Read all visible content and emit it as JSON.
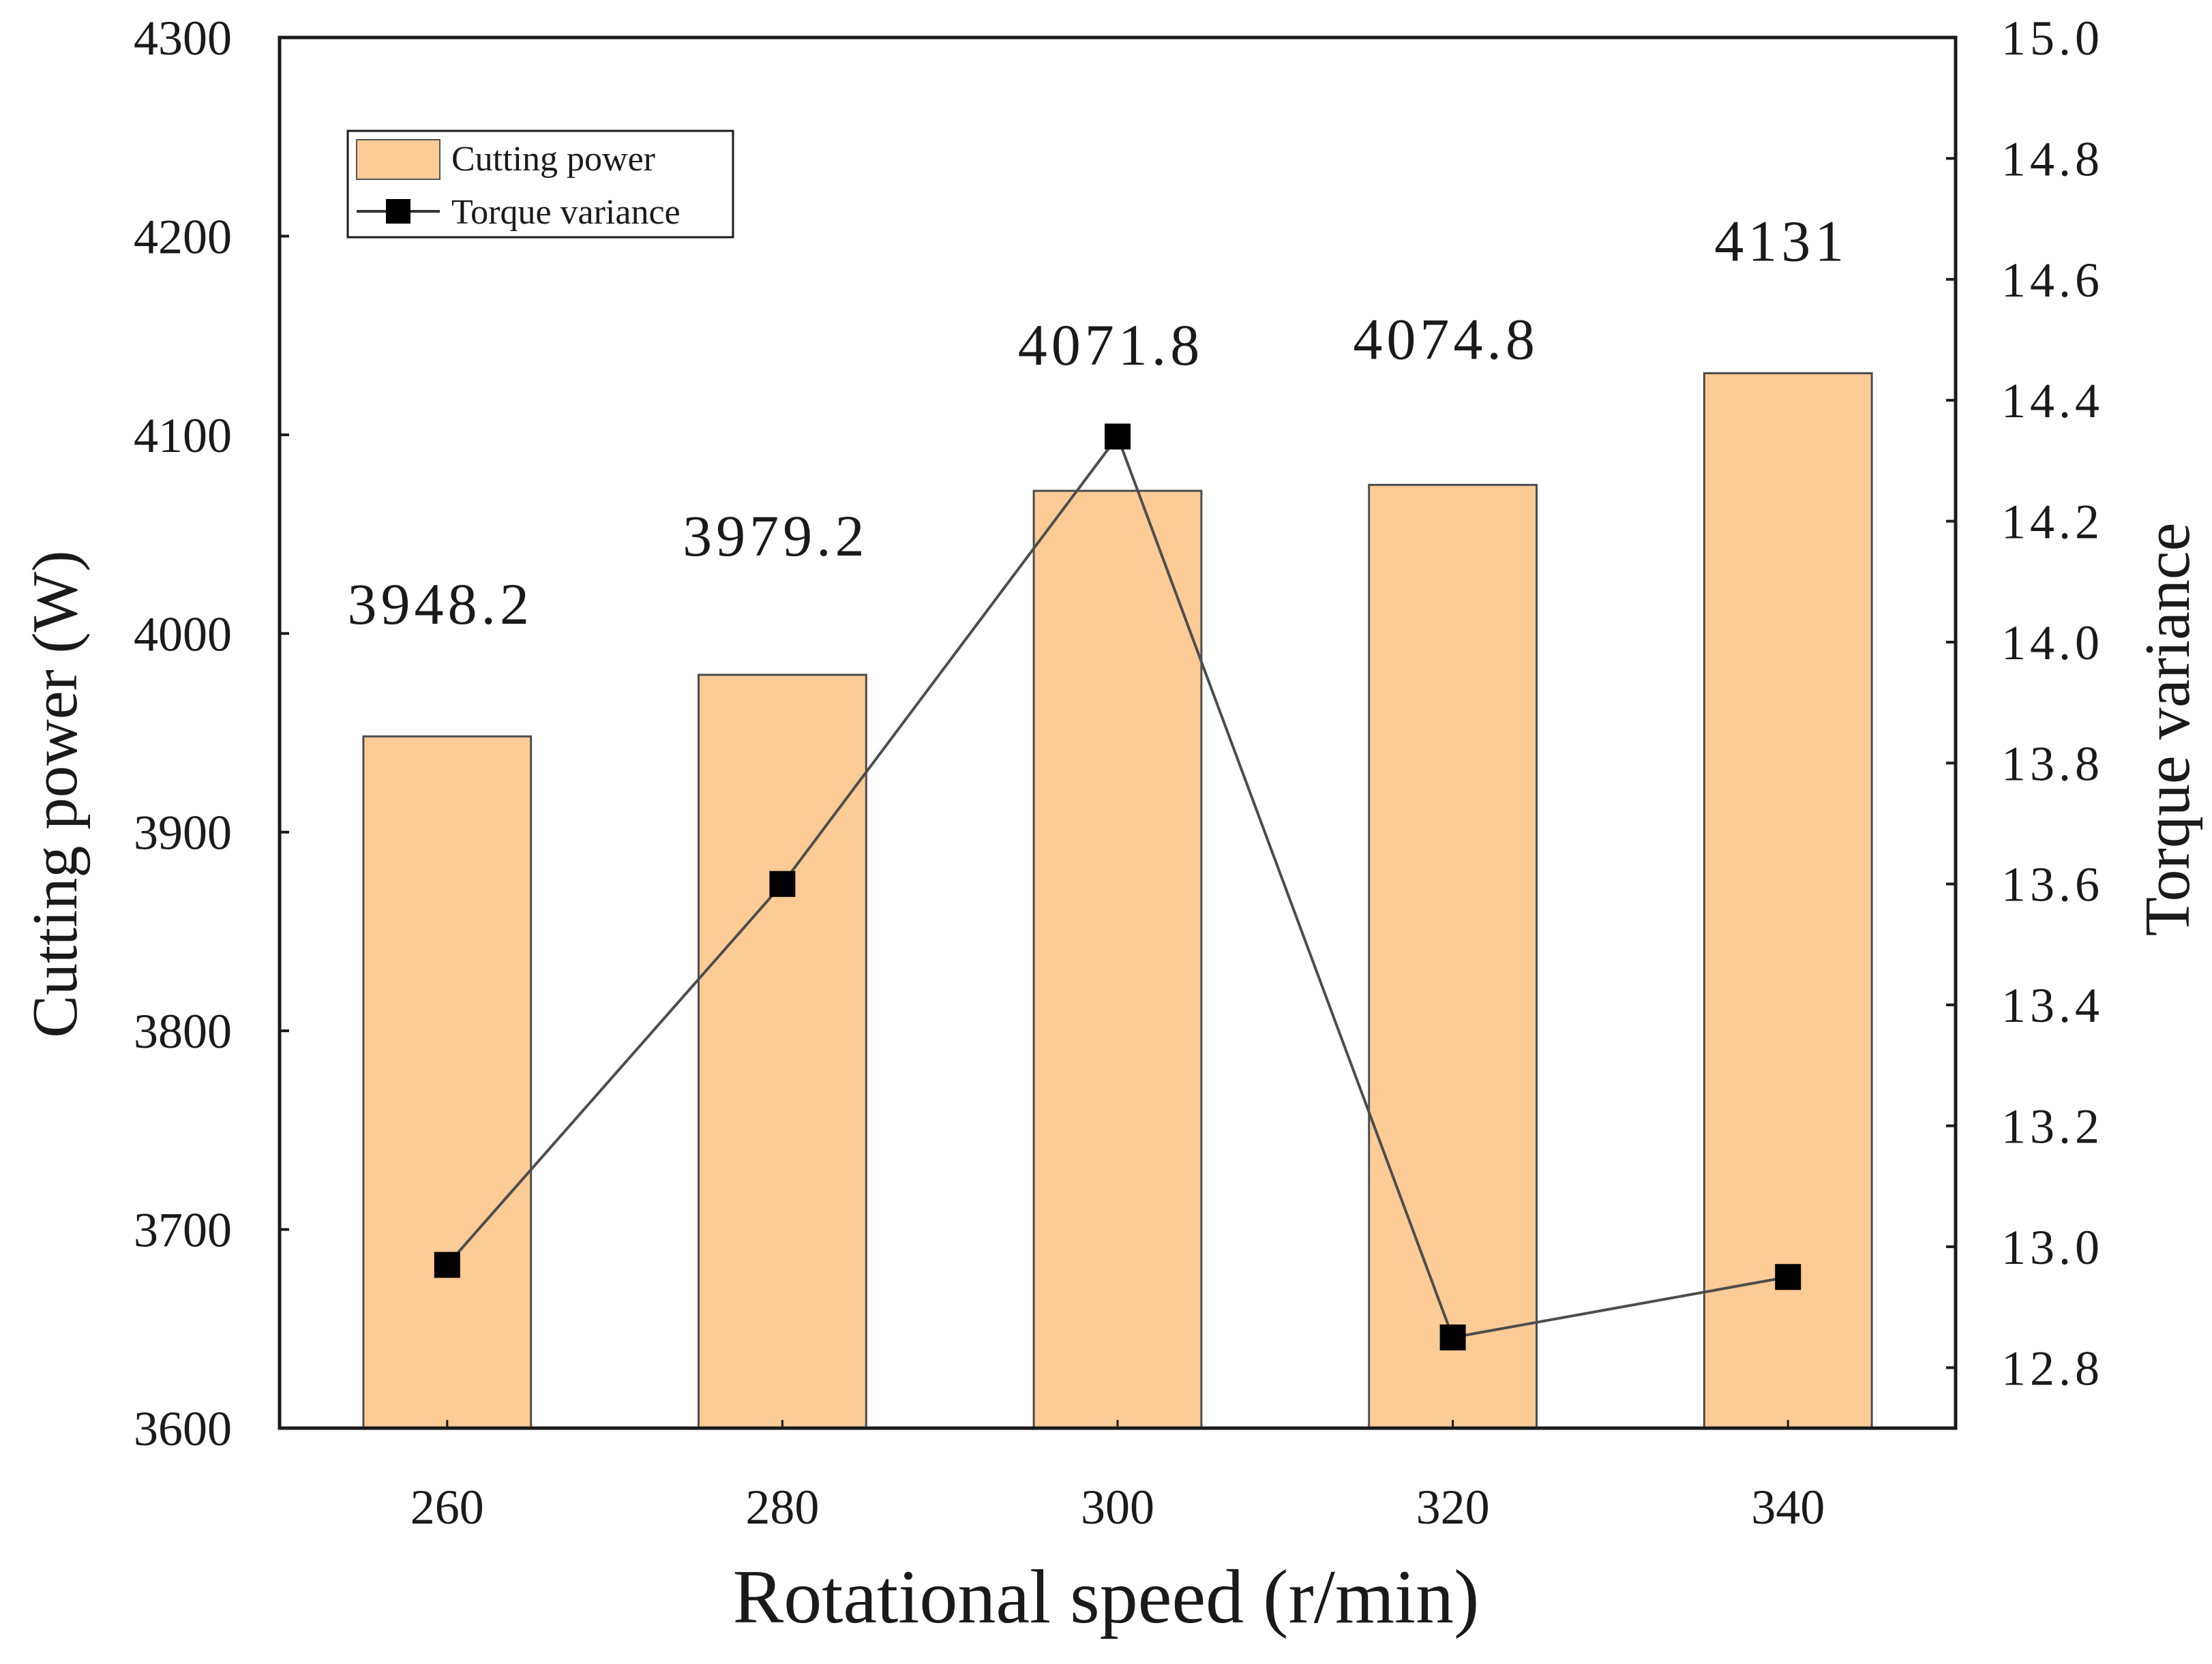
{
  "chart_data": {
    "type": "bar",
    "categories": [
      "260",
      "280",
      "300",
      "320",
      "340"
    ],
    "series": [
      {
        "name": "Cutting power",
        "kind": "bar",
        "axis": "left",
        "values": [
          3948.2,
          3979.2,
          4071.8,
          4074.8,
          4131
        ],
        "labels": [
          "3948.2",
          "3979.2",
          "4071.8",
          "4074.8",
          "4131"
        ],
        "color": "#fdcb95"
      },
      {
        "name": "Torque variance",
        "kind": "line",
        "axis": "right",
        "marker": "square",
        "values": [
          12.97,
          13.6,
          14.34,
          12.85,
          12.95
        ],
        "color": "#000000"
      }
    ],
    "xlabel": "Rotational speed (r/min)",
    "ylabel": "Cutting power (W)",
    "y2label": "Torque variance",
    "ylim": [
      3600,
      4300
    ],
    "y2lim": [
      12.7,
      15.0
    ],
    "yticks": [
      "3600",
      "3700",
      "3800",
      "3900",
      "4000",
      "4100",
      "4200",
      "4300"
    ],
    "y2ticks": [
      "12.8",
      "13.0",
      "13.2",
      "13.4",
      "13.6",
      "13.8",
      "14.0",
      "14.2",
      "14.4",
      "14.6",
      "14.8",
      "15.0"
    ],
    "y2tick_values": [
      12.8,
      13.0,
      13.2,
      13.4,
      13.6,
      13.8,
      14.0,
      14.2,
      14.4,
      14.6,
      14.8,
      15.0
    ],
    "legend": {
      "position": "top-left",
      "entries": [
        "Cutting power",
        "Torque variance"
      ]
    },
    "grid": false
  }
}
